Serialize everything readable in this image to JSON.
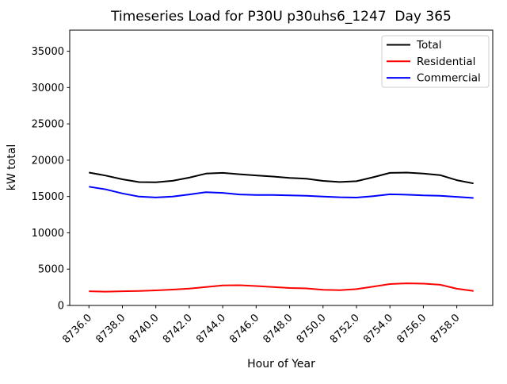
{
  "chart_data": {
    "type": "line",
    "title": "Timeseries Load for P30U p30uhs6_1247  Day 365",
    "xlabel": "Hour of Year",
    "ylabel": "kW total",
    "grid": false,
    "background": "#ffffff",
    "xlim": [
      8734.85,
      8760.15
    ],
    "ylim": [
      0,
      37900
    ],
    "xticks": [
      8736,
      8738,
      8740,
      8742,
      8744,
      8746,
      8748,
      8750,
      8752,
      8754,
      8756,
      8758
    ],
    "xtick_labels": [
      "8736.0",
      "8738.0",
      "8740.0",
      "8742.0",
      "8744.0",
      "8746.0",
      "8748.0",
      "8750.0",
      "8752.0",
      "8754.0",
      "8756.0",
      "8758.0"
    ],
    "xtick_rotation_deg": 45,
    "yticks": [
      0,
      5000,
      10000,
      15000,
      20000,
      25000,
      30000,
      35000
    ],
    "ytick_labels": [
      "0",
      "5000",
      "10000",
      "15000",
      "20000",
      "25000",
      "30000",
      "35000"
    ],
    "x": [
      8736,
      8737,
      8738,
      8739,
      8740,
      8741,
      8742,
      8743,
      8744,
      8745,
      8746,
      8747,
      8748,
      8749,
      8750,
      8751,
      8752,
      8753,
      8754,
      8755,
      8756,
      8757,
      8758,
      8759
    ],
    "series": [
      {
        "name": "Total",
        "color": "#000000",
        "values": [
          18300,
          17880,
          17370,
          16980,
          16950,
          17160,
          17600,
          18150,
          18250,
          18060,
          17900,
          17750,
          17550,
          17450,
          17150,
          17000,
          17100,
          17650,
          18250,
          18300,
          18150,
          17950,
          17250,
          16800
        ]
      },
      {
        "name": "Residential",
        "color": "#ff0000",
        "values": [
          1950,
          1900,
          1950,
          2000,
          2080,
          2180,
          2320,
          2550,
          2750,
          2780,
          2680,
          2550,
          2400,
          2350,
          2150,
          2100,
          2250,
          2600,
          2950,
          3050,
          3000,
          2850,
          2300,
          2000
        ]
      },
      {
        "name": "Commercial",
        "color": "#0000ff",
        "values": [
          16350,
          15980,
          15420,
          14980,
          14870,
          14980,
          15280,
          15600,
          15500,
          15280,
          15220,
          15200,
          15150,
          15100,
          15000,
          14900,
          14850,
          15050,
          15300,
          15250,
          15150,
          15100,
          14950,
          14800
        ]
      }
    ],
    "legend": {
      "position": "upper right",
      "entries": [
        "Total",
        "Residential",
        "Commercial"
      ]
    }
  }
}
